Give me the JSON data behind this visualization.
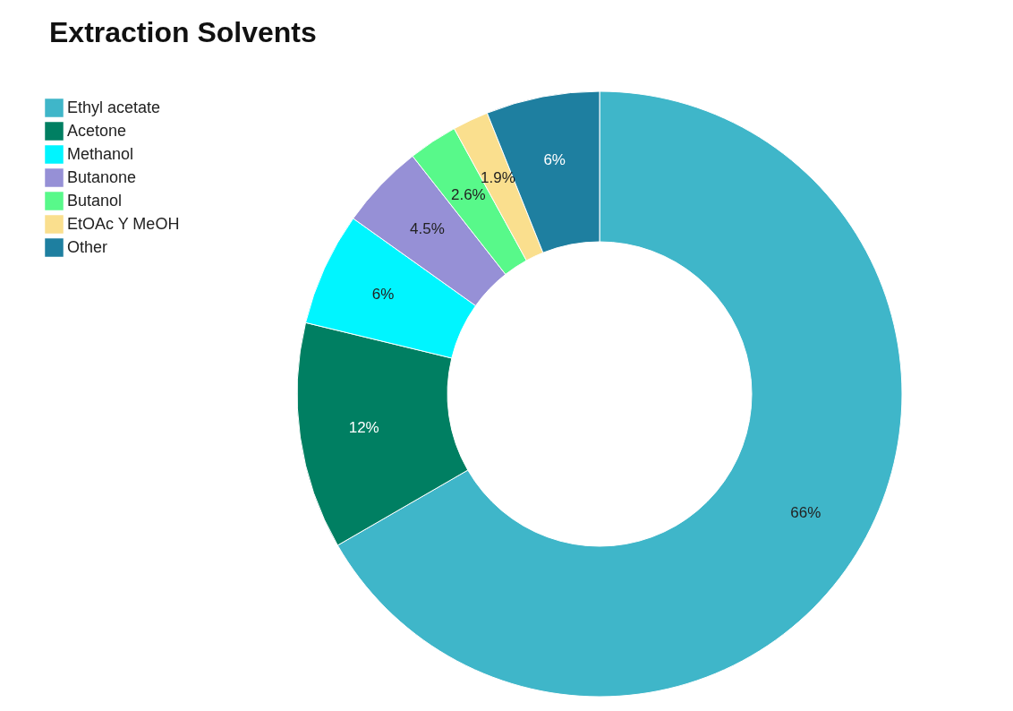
{
  "chart_data": {
    "type": "donut",
    "title": "Extraction Solvents",
    "categories": [
      "Ethyl acetate",
      "Acetone",
      "Methanol",
      "Butanone",
      "Butanol",
      "EtOAc Y MeOH",
      "Other"
    ],
    "values": [
      66,
      12,
      6,
      4.5,
      2.6,
      1.9,
      6
    ],
    "value_labels": [
      "66%",
      "12%",
      "6%",
      "4.5%",
      "2.6%",
      "1.9%",
      "6%"
    ],
    "colors": [
      "#3fb6c9",
      "#007f62",
      "#00f5ff",
      "#9690d6",
      "#58f98a",
      "#fadf8e",
      "#1e7fa0"
    ],
    "legend": "top left"
  }
}
